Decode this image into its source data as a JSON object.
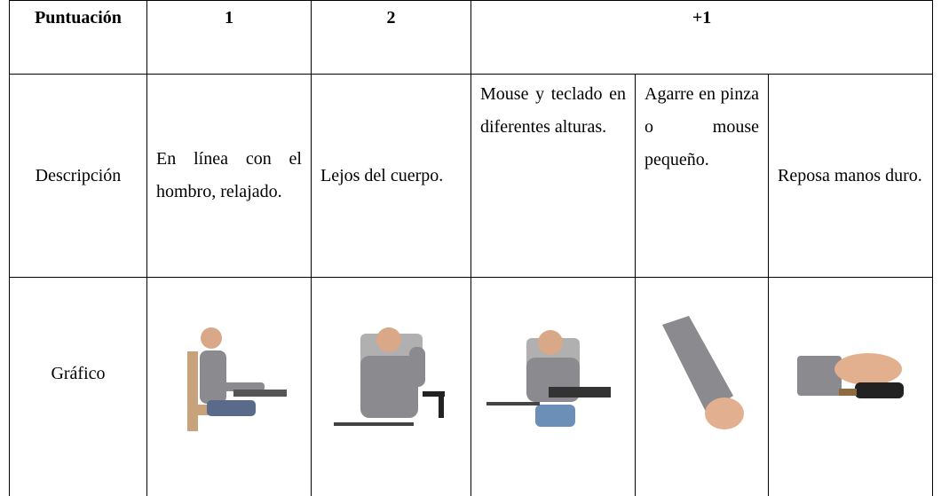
{
  "table": {
    "header": [
      "Puntuación",
      "1",
      "2",
      "+1"
    ],
    "rows": [
      [
        "Descripción",
        "En línea con el hombro, relajado.",
        "Lejos del cuerpo.",
        "Mouse y teclado en diferentes alturas.",
        "Agarre en pinza o mouse pequeño.",
        "Reposa manos duro."
      ],
      [
        "Gráfico"
      ]
    ]
  }
}
